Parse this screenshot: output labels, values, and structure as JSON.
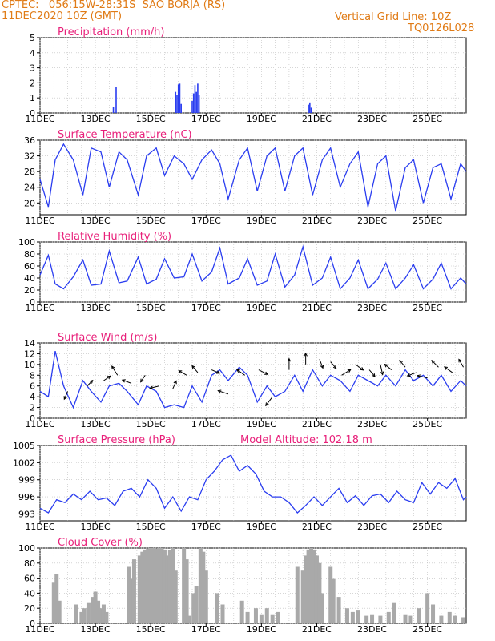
{
  "header": {
    "line1": "CPTEC:   056:15W-28:31S  SAO BORJA (RS)",
    "line2": "11DEC2020 10Z (GMT)",
    "right1": "Vertical Grid Line: 10Z",
    "right2": "TQ0126L028"
  },
  "colors": {
    "header": "#e07b16",
    "title": "#e8207a",
    "series": "#2a3df0",
    "cloud": "#a9a9a9"
  },
  "x_ticks": [
    "11DEC",
    "13DEC",
    "15DEC",
    "17DEC",
    "19DEC",
    "21DEC",
    "23DEC",
    "25DEC"
  ],
  "chart_data": [
    {
      "id": "precip",
      "type": "bar",
      "title": "Precipitation (mm/h)",
      "ylim": [
        0,
        5
      ],
      "yticks": [
        0,
        1,
        2,
        3,
        4,
        5
      ],
      "x_unit": "days since 11DEC 00Z",
      "points": [
        [
          2.65,
          0.4
        ],
        [
          2.75,
          1.75
        ],
        [
          4.9,
          1.4
        ],
        [
          4.95,
          1.2
        ],
        [
          5.0,
          1.9
        ],
        [
          5.05,
          1.95
        ],
        [
          5.1,
          0.6
        ],
        [
          5.5,
          0.8
        ],
        [
          5.55,
          1.3
        ],
        [
          5.6,
          1.85
        ],
        [
          5.65,
          1.4
        ],
        [
          5.7,
          1.95
        ],
        [
          5.75,
          1.2
        ],
        [
          9.7,
          0.55
        ],
        [
          9.75,
          0.7
        ],
        [
          9.8,
          0.35
        ]
      ]
    },
    {
      "id": "temp",
      "type": "line",
      "title": "Surface Temperature (nC)",
      "ylim": [
        17,
        36
      ],
      "yticks": [
        20,
        24,
        28,
        32,
        36
      ],
      "x_unit": "days since 11DEC 00Z",
      "x": [
        0,
        0.3,
        0.55,
        0.85,
        1.2,
        1.55,
        1.85,
        2.2,
        2.5,
        2.85,
        3.15,
        3.55,
        3.85,
        4.2,
        4.5,
        4.85,
        5.2,
        5.5,
        5.85,
        6.2,
        6.5,
        6.8,
        7.2,
        7.5,
        7.85,
        8.2,
        8.5,
        8.85,
        9.2,
        9.5,
        9.85,
        10.2,
        10.5,
        10.85,
        11.2,
        11.5,
        11.85,
        12.2,
        12.5,
        12.85,
        13.2,
        13.5,
        13.85,
        14.2,
        14.5,
        14.85,
        15.2,
        15.4
      ],
      "y": [
        26,
        19,
        31,
        35,
        31,
        22,
        34,
        33,
        24,
        33,
        31,
        22,
        32,
        34,
        27,
        32,
        30,
        26,
        31,
        33.5,
        30,
        21,
        31,
        34,
        23,
        32,
        34,
        23,
        32,
        34,
        22,
        31,
        34,
        24,
        30,
        33,
        19,
        30,
        32,
        18,
        29,
        31,
        20,
        29,
        30,
        21,
        30,
        28
      ]
    },
    {
      "id": "rh",
      "type": "line",
      "title": "Relative Humidity (%)",
      "ylim": [
        0,
        100
      ],
      "yticks": [
        0,
        20,
        40,
        60,
        80,
        100
      ],
      "x_unit": "days since 11DEC 00Z",
      "x": [
        0,
        0.3,
        0.55,
        0.85,
        1.2,
        1.55,
        1.85,
        2.2,
        2.5,
        2.85,
        3.15,
        3.55,
        3.85,
        4.2,
        4.5,
        4.85,
        5.2,
        5.5,
        5.85,
        6.2,
        6.5,
        6.8,
        7.2,
        7.5,
        7.85,
        8.2,
        8.5,
        8.85,
        9.2,
        9.5,
        9.85,
        10.2,
        10.5,
        10.85,
        11.2,
        11.5,
        11.85,
        12.2,
        12.5,
        12.85,
        13.2,
        13.5,
        13.85,
        14.2,
        14.5,
        14.85,
        15.2,
        15.4
      ],
      "y": [
        45,
        78,
        30,
        22,
        42,
        70,
        28,
        30,
        85,
        32,
        35,
        75,
        30,
        38,
        72,
        40,
        42,
        80,
        35,
        50,
        90,
        30,
        40,
        72,
        28,
        35,
        80,
        25,
        45,
        92,
        28,
        40,
        75,
        22,
        40,
        70,
        22,
        38,
        65,
        22,
        40,
        62,
        22,
        38,
        65,
        22,
        40,
        30
      ]
    },
    {
      "id": "wind",
      "type": "line",
      "title": "Surface Wind (m/s)",
      "ylim": [
        0,
        14
      ],
      "yticks": [
        0,
        2,
        4,
        6,
        8,
        10,
        12,
        14
      ],
      "x_unit": "days since 11DEC 00Z",
      "x": [
        0,
        0.3,
        0.55,
        0.85,
        1.2,
        1.55,
        1.85,
        2.2,
        2.5,
        2.85,
        3.15,
        3.55,
        3.85,
        4.2,
        4.5,
        4.85,
        5.2,
        5.5,
        5.85,
        6.2,
        6.5,
        6.8,
        7.2,
        7.5,
        7.85,
        8.2,
        8.5,
        8.85,
        9.2,
        9.5,
        9.85,
        10.2,
        10.5,
        10.85,
        11.2,
        11.5,
        11.85,
        12.2,
        12.5,
        12.85,
        13.2,
        13.5,
        13.85,
        14.2,
        14.5,
        14.85,
        15.2,
        15.4
      ],
      "y": [
        5,
        4,
        12.5,
        6,
        2,
        7,
        5,
        3,
        6,
        6.5,
        5,
        2.5,
        6,
        5,
        2,
        2.5,
        2,
        6,
        3,
        8,
        9,
        7,
        9.5,
        8,
        3,
        6,
        4,
        5,
        8,
        5,
        9,
        6,
        8,
        7,
        5,
        8,
        7,
        6,
        8,
        6,
        9,
        7,
        8,
        6,
        8,
        5,
        7,
        6
      ],
      "vectors": [
        [
          1.0,
          5,
          -0.3,
          -0.7
        ],
        [
          1.7,
          6,
          0.5,
          0.5
        ],
        [
          2.3,
          7,
          0.6,
          0.4
        ],
        [
          2.8,
          8,
          -0.5,
          0.8
        ],
        [
          3.3,
          6.5,
          -0.8,
          0.3
        ],
        [
          3.8,
          8,
          -0.4,
          -0.6
        ],
        [
          4.3,
          6,
          -0.8,
          -0.2
        ],
        [
          4.8,
          5.5,
          0.3,
          0.7
        ],
        [
          5.3,
          8,
          -0.7,
          0.4
        ],
        [
          5.7,
          8.5,
          -0.5,
          0.6
        ],
        [
          6.2,
          9,
          0.7,
          -0.3
        ],
        [
          6.8,
          4.5,
          -0.9,
          0.3
        ],
        [
          7.4,
          8,
          -0.7,
          0.5
        ],
        [
          7.9,
          9,
          0.8,
          -0.4
        ],
        [
          8.4,
          4,
          -0.6,
          -0.8
        ],
        [
          9.0,
          9,
          0,
          1
        ],
        [
          9.6,
          10,
          0,
          1
        ],
        [
          10.1,
          11,
          0.3,
          -0.8
        ],
        [
          10.5,
          10.5,
          0.5,
          -0.6
        ],
        [
          10.9,
          8,
          0.8,
          0.5
        ],
        [
          11.4,
          10,
          0.7,
          -0.5
        ],
        [
          11.9,
          9,
          0.5,
          -0.6
        ],
        [
          12.3,
          10,
          0.2,
          -0.9
        ],
        [
          12.7,
          9,
          -0.6,
          0.5
        ],
        [
          13.2,
          9.5,
          -0.5,
          0.6
        ],
        [
          13.6,
          8.5,
          -0.8,
          -0.3
        ],
        [
          14.0,
          7.5,
          -0.9,
          0.2
        ],
        [
          14.4,
          9.5,
          -0.6,
          0.6
        ],
        [
          14.9,
          8.5,
          -0.7,
          0.5
        ],
        [
          15.3,
          9.5,
          -0.4,
          0.7
        ]
      ]
    },
    {
      "id": "press",
      "type": "line",
      "title": "Surface Pressure (hPa)",
      "extra_label": "Model Altitude: 102.18 m",
      "ylim": [
        991.8,
        1005
      ],
      "yticks": [
        993,
        996,
        999,
        1002,
        1005
      ],
      "x_unit": "days since 11DEC 00Z",
      "x": [
        0,
        0.3,
        0.6,
        0.9,
        1.2,
        1.5,
        1.8,
        2.1,
        2.4,
        2.7,
        3.0,
        3.3,
        3.6,
        3.9,
        4.2,
        4.5,
        4.8,
        5.1,
        5.4,
        5.7,
        6.0,
        6.3,
        6.6,
        6.9,
        7.2,
        7.5,
        7.8,
        8.1,
        8.4,
        8.7,
        9.0,
        9.3,
        9.6,
        9.9,
        10.2,
        10.5,
        10.8,
        11.1,
        11.4,
        11.7,
        12.0,
        12.3,
        12.6,
        12.9,
        13.2,
        13.5,
        13.8,
        14.1,
        14.4,
        14.7,
        15.0,
        15.3,
        15.4
      ],
      "y": [
        994,
        993.2,
        995.5,
        995,
        996.5,
        995.5,
        997,
        995.5,
        995.8,
        994.5,
        997,
        997.5,
        996,
        999,
        997.5,
        994,
        996,
        993.5,
        996,
        995.5,
        999,
        1000.5,
        1002.5,
        1003.3,
        1000.5,
        1001.5,
        1000,
        997,
        996,
        996,
        995,
        993.2,
        994.5,
        996,
        994.5,
        996,
        997.5,
        995,
        996.2,
        994.5,
        996.2,
        996.5,
        995,
        997,
        995.5,
        995,
        998.5,
        996.5,
        998.5,
        997.5,
        999.2,
        995.5,
        996
      ]
    },
    {
      "id": "cloud",
      "type": "bar",
      "title": "Cloud Cover (%)",
      "ylim": [
        0,
        100
      ],
      "yticks": [
        0,
        20,
        40,
        60,
        80,
        100
      ],
      "x_unit": "days since 11DEC 00Z",
      "points": [
        [
          0.5,
          55
        ],
        [
          0.6,
          65
        ],
        [
          0.7,
          30
        ],
        [
          1.3,
          25
        ],
        [
          1.5,
          15
        ],
        [
          1.6,
          20
        ],
        [
          1.75,
          28
        ],
        [
          1.9,
          35
        ],
        [
          2.0,
          42
        ],
        [
          2.1,
          30
        ],
        [
          2.2,
          20
        ],
        [
          2.3,
          25
        ],
        [
          2.4,
          15
        ],
        [
          3.2,
          75
        ],
        [
          3.3,
          60
        ],
        [
          3.4,
          85
        ],
        [
          3.6,
          90
        ],
        [
          3.7,
          95
        ],
        [
          3.8,
          98
        ],
        [
          3.9,
          99
        ],
        [
          4.0,
          100
        ],
        [
          4.1,
          100
        ],
        [
          4.2,
          99
        ],
        [
          4.3,
          100
        ],
        [
          4.4,
          100
        ],
        [
          4.5,
          98
        ],
        [
          4.6,
          90
        ],
        [
          4.7,
          97
        ],
        [
          4.8,
          100
        ],
        [
          4.9,
          70
        ],
        [
          5.2,
          100
        ],
        [
          5.3,
          85
        ],
        [
          5.4,
          10
        ],
        [
          5.55,
          40
        ],
        [
          5.65,
          50
        ],
        [
          5.8,
          100
        ],
        [
          5.9,
          95
        ],
        [
          6.0,
          70
        ],
        [
          6.4,
          40
        ],
        [
          6.6,
          25
        ],
        [
          7.3,
          30
        ],
        [
          7.5,
          15
        ],
        [
          7.8,
          20
        ],
        [
          8.0,
          12
        ],
        [
          8.2,
          20
        ],
        [
          8.4,
          12
        ],
        [
          8.6,
          15
        ],
        [
          9.3,
          75
        ],
        [
          9.5,
          70
        ],
        [
          9.6,
          90
        ],
        [
          9.7,
          98
        ],
        [
          9.8,
          100
        ],
        [
          9.9,
          98
        ],
        [
          10.0,
          90
        ],
        [
          10.1,
          80
        ],
        [
          10.2,
          40
        ],
        [
          10.5,
          75
        ],
        [
          10.6,
          60
        ],
        [
          10.8,
          35
        ],
        [
          11.1,
          20
        ],
        [
          11.3,
          15
        ],
        [
          11.5,
          18
        ],
        [
          11.8,
          10
        ],
        [
          12.0,
          12
        ],
        [
          12.3,
          10
        ],
        [
          12.6,
          15
        ],
        [
          12.8,
          28
        ],
        [
          13.2,
          12
        ],
        [
          13.4,
          10
        ],
        [
          13.7,
          20
        ],
        [
          14.0,
          40
        ],
        [
          14.2,
          25
        ],
        [
          14.5,
          10
        ],
        [
          14.8,
          15
        ],
        [
          15.0,
          10
        ],
        [
          15.3,
          8
        ]
      ]
    }
  ]
}
